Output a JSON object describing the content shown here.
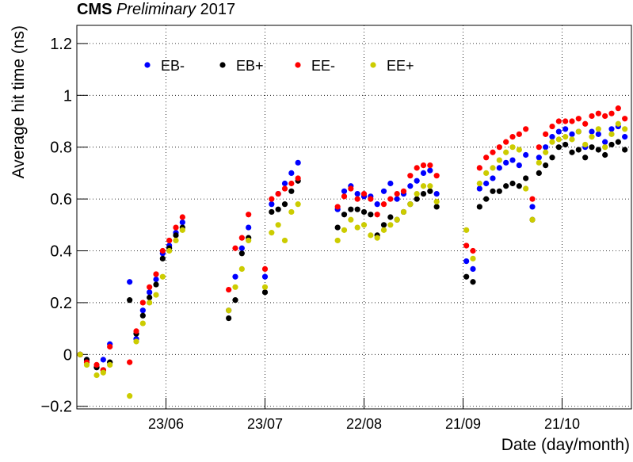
{
  "chart_data": {
    "type": "scatter",
    "title": {
      "experiment": "CMS",
      "status": "Preliminary",
      "year": "2017"
    },
    "x_label": "Date (day/month)",
    "y_label": "Average hit time (ns)",
    "xlim": [
      147,
      315
    ],
    "ylim": [
      -0.21,
      1.27
    ],
    "xticks": [
      {
        "value": 174,
        "label": "23/06"
      },
      {
        "value": 204,
        "label": "23/07"
      },
      {
        "value": 234,
        "label": "22/08"
      },
      {
        "value": 264,
        "label": "21/09"
      },
      {
        "value": 294,
        "label": "21/10"
      }
    ],
    "yticks": [
      {
        "value": -0.2,
        "label": "−0.2"
      },
      0,
      0.2,
      0.4,
      0.6,
      0.8,
      1,
      1.2
    ],
    "grid": true,
    "legend": "top",
    "x": [
      148,
      150,
      153,
      155,
      157,
      163,
      165,
      167,
      169,
      171,
      173,
      175,
      177,
      179,
      193,
      195,
      197,
      199,
      204,
      206,
      208,
      210,
      212,
      214,
      226,
      228,
      230,
      232,
      234,
      236,
      238,
      240,
      242,
      244,
      246,
      248,
      250,
      252,
      254,
      256,
      265,
      267,
      269,
      271,
      273,
      275,
      277,
      279,
      281,
      283,
      285,
      287,
      289,
      291,
      293,
      295,
      297,
      299,
      301,
      303,
      305,
      307,
      309,
      311,
      313
    ],
    "series": [
      {
        "name": "EB-",
        "color": "#0000ff",
        "values": [
          0.0,
          -0.02,
          -0.05,
          -0.02,
          0.04,
          0.28,
          0.06,
          0.17,
          0.24,
          0.29,
          0.39,
          0.42,
          0.47,
          0.51,
          0.17,
          0.3,
          0.41,
          0.49,
          0.3,
          0.58,
          0.62,
          0.66,
          0.7,
          0.74,
          0.56,
          0.63,
          0.65,
          0.62,
          0.61,
          0.61,
          0.58,
          0.63,
          0.66,
          0.6,
          0.62,
          0.65,
          0.67,
          0.7,
          0.71,
          0.62,
          0.36,
          0.33,
          0.64,
          0.66,
          0.68,
          0.72,
          0.74,
          0.75,
          0.73,
          0.77,
          0.57,
          0.76,
          0.8,
          0.84,
          0.86,
          0.87,
          0.85,
          0.86,
          0.8,
          0.86,
          0.85,
          0.82,
          0.87,
          0.88,
          0.84
        ]
      },
      {
        "name": "EB+",
        "color": "#000000",
        "values": [
          0.0,
          -0.02,
          -0.05,
          -0.06,
          -0.03,
          0.21,
          0.08,
          0.15,
          0.22,
          0.27,
          0.37,
          0.41,
          0.46,
          0.49,
          0.14,
          0.21,
          0.39,
          0.45,
          0.24,
          0.55,
          0.56,
          0.58,
          0.63,
          0.67,
          0.49,
          0.54,
          0.56,
          0.56,
          0.55,
          0.54,
          0.46,
          0.5,
          0.53,
          0.52,
          0.55,
          0.58,
          0.6,
          0.62,
          0.63,
          0.57,
          0.3,
          0.28,
          0.57,
          0.6,
          0.63,
          0.63,
          0.65,
          0.66,
          0.65,
          0.68,
          0.52,
          0.7,
          0.73,
          0.76,
          0.8,
          0.81,
          0.78,
          0.79,
          0.76,
          0.8,
          0.79,
          0.77,
          0.81,
          0.82,
          0.79
        ]
      },
      {
        "name": "EE-",
        "color": "#ff0000",
        "values": [
          0.0,
          -0.03,
          -0.04,
          -0.06,
          0.03,
          -0.03,
          0.09,
          0.2,
          0.26,
          0.31,
          0.4,
          0.44,
          0.49,
          0.53,
          0.25,
          0.41,
          0.45,
          0.54,
          0.33,
          0.6,
          0.62,
          0.64,
          0.66,
          0.68,
          0.57,
          0.61,
          0.64,
          0.6,
          0.62,
          0.6,
          0.54,
          0.58,
          0.6,
          0.62,
          0.63,
          0.69,
          0.72,
          0.73,
          0.73,
          0.69,
          0.42,
          0.4,
          0.72,
          0.76,
          0.78,
          0.8,
          0.82,
          0.84,
          0.85,
          0.87,
          0.6,
          0.8,
          0.85,
          0.88,
          0.9,
          0.9,
          0.9,
          0.91,
          0.89,
          0.92,
          0.93,
          0.92,
          0.93,
          0.95,
          0.91
        ]
      },
      {
        "name": "EE+",
        "color": "#cccc00",
        "values": [
          0.0,
          -0.04,
          -0.08,
          -0.07,
          -0.04,
          -0.16,
          0.05,
          0.12,
          0.2,
          0.23,
          0.3,
          0.4,
          0.44,
          0.48,
          0.17,
          0.26,
          0.33,
          0.44,
          0.26,
          0.47,
          0.5,
          0.44,
          0.55,
          0.58,
          0.44,
          0.48,
          0.52,
          0.49,
          0.5,
          0.46,
          0.45,
          0.48,
          0.5,
          0.52,
          0.55,
          0.58,
          0.62,
          0.65,
          0.65,
          0.59,
          0.48,
          0.37,
          0.66,
          0.7,
          0.72,
          0.75,
          0.78,
          0.8,
          0.79,
          0.64,
          0.52,
          0.74,
          0.78,
          0.82,
          0.83,
          0.84,
          0.83,
          0.86,
          0.81,
          0.84,
          0.87,
          0.8,
          0.85,
          0.89,
          0.87
        ]
      }
    ]
  }
}
